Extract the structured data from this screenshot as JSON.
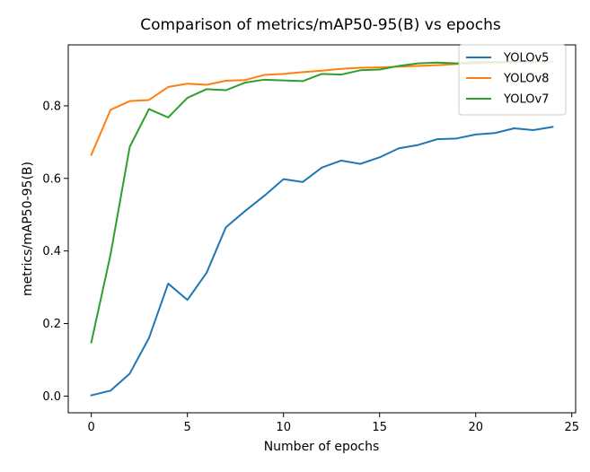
{
  "chart_data": {
    "type": "line",
    "title": "Comparison of metrics/mAP50-95(B) vs epochs",
    "xlabel": "Number of epochs",
    "ylabel": "metrics/mAP50-95(B)",
    "xlim": [
      -1.2,
      25.2
    ],
    "ylim": [
      -0.046,
      0.968
    ],
    "xticks": [
      0,
      5,
      10,
      15,
      20,
      25
    ],
    "yticks": [
      0.0,
      0.2,
      0.4,
      0.6,
      0.8
    ],
    "xtick_labels": [
      "0",
      "5",
      "10",
      "15",
      "20",
      "25"
    ],
    "ytick_labels": [
      "0.0",
      "0.2",
      "0.4",
      "0.6",
      "0.8"
    ],
    "grid": false,
    "legend_position": "top-right",
    "series": [
      {
        "name": "YOLOv5",
        "color": "#1f77b4",
        "x": [
          0,
          1,
          2,
          3,
          4,
          5,
          6,
          7,
          8,
          9,
          10,
          11,
          12,
          13,
          14,
          15,
          16,
          17,
          18,
          19,
          20,
          21,
          22,
          23,
          24
        ],
        "values": [
          0.002,
          0.015,
          0.062,
          0.16,
          0.31,
          0.265,
          0.34,
          0.465,
          0.51,
          0.552,
          0.598,
          0.59,
          0.63,
          0.649,
          0.64,
          0.658,
          0.683,
          0.692,
          0.708,
          0.71,
          0.721,
          0.725,
          0.738,
          0.733,
          0.742
        ]
      },
      {
        "name": "YOLOv8",
        "color": "#ff7f0e",
        "x": [
          0,
          1,
          2,
          3,
          4,
          5,
          6,
          7,
          8,
          9,
          10,
          11,
          12,
          13,
          14,
          15,
          16,
          17,
          18,
          19,
          20,
          21,
          22,
          23,
          24
        ],
        "values": [
          0.665,
          0.789,
          0.813,
          0.816,
          0.852,
          0.861,
          0.858,
          0.869,
          0.871,
          0.885,
          0.888,
          0.893,
          0.897,
          0.902,
          0.905,
          0.906,
          0.908,
          0.91,
          0.912,
          0.915,
          0.917,
          0.918,
          0.92,
          0.921,
          0.921
        ]
      },
      {
        "name": "YOLOv7",
        "color": "#2ca02c",
        "x": [
          0,
          1,
          2,
          3,
          4,
          5,
          6,
          7,
          8,
          9,
          10,
          11,
          12,
          13,
          14,
          15,
          16,
          17,
          18,
          19,
          20,
          21,
          22,
          23
        ],
        "values": [
          0.148,
          0.39,
          0.687,
          0.791,
          0.768,
          0.822,
          0.846,
          0.843,
          0.864,
          0.872,
          0.87,
          0.868,
          0.888,
          0.886,
          0.898,
          0.9,
          0.91,
          0.917,
          0.919,
          0.917,
          0.92,
          0.921,
          0.922,
          0.922
        ]
      }
    ]
  }
}
